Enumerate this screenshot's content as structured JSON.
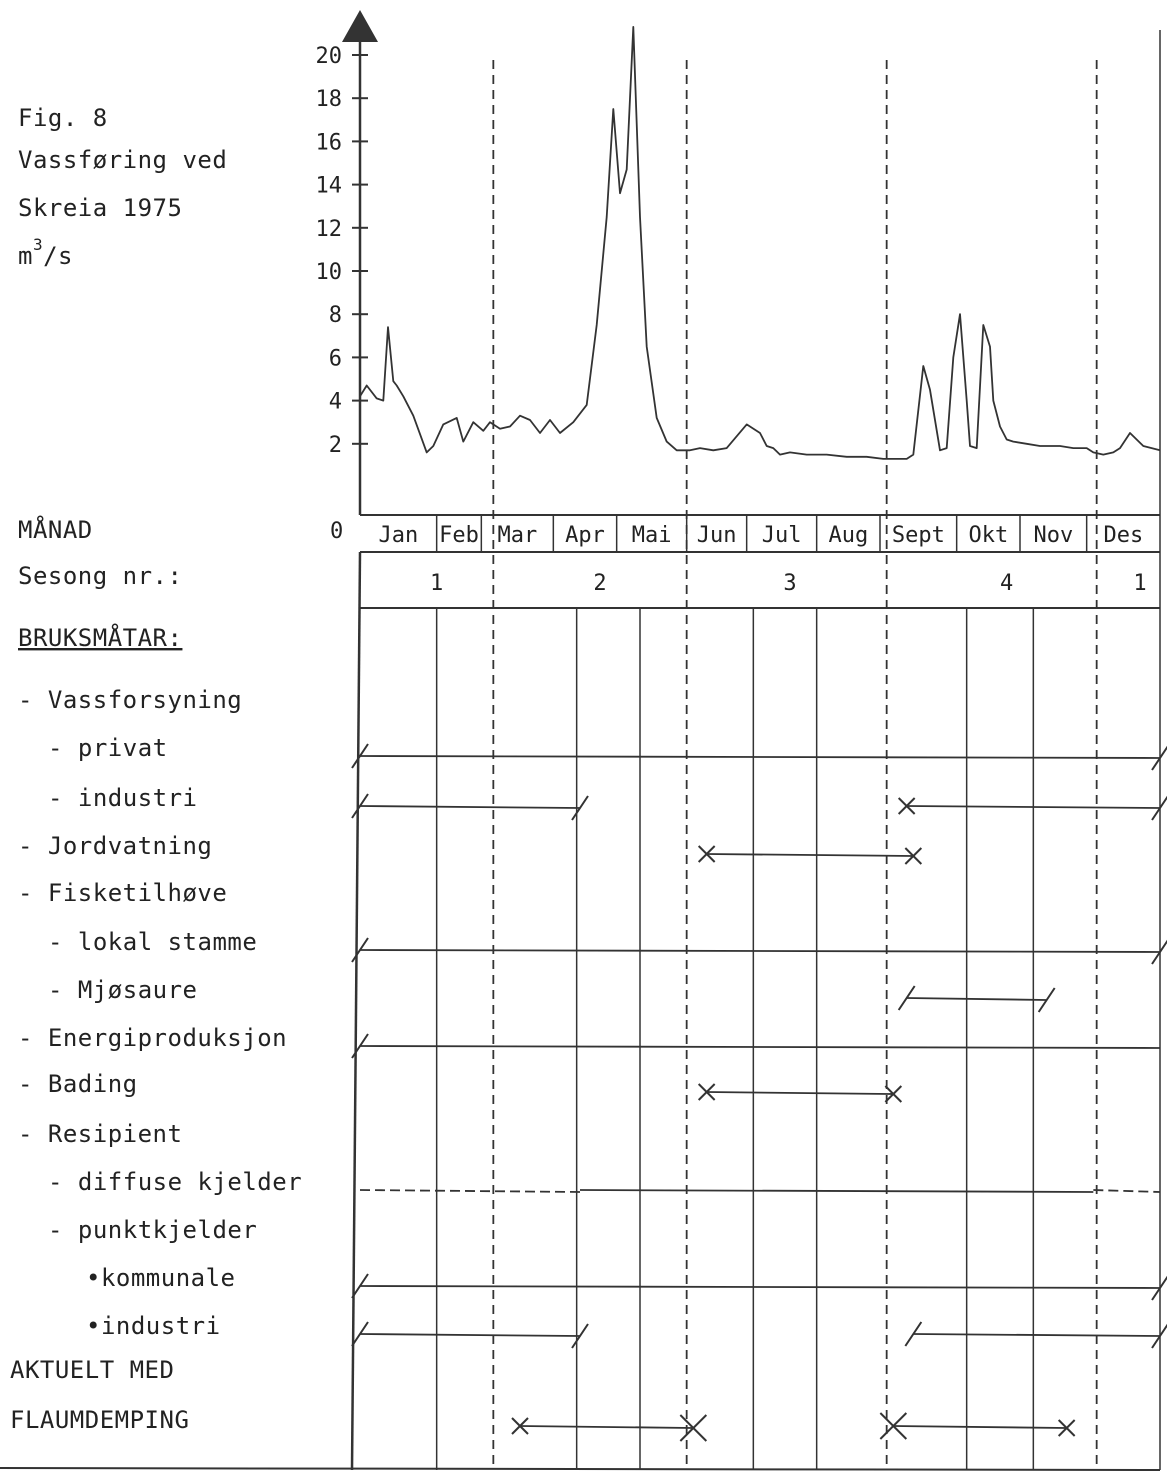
{
  "figure": {
    "fig_label": "Fig. 8",
    "title_line1": "Vassføring ved",
    "title_line2": "Skreia 1975",
    "unit_base": "m",
    "unit_exp": "3",
    "unit_tail": "/s"
  },
  "rows": {
    "month_label": "MÅNAD",
    "season_label": "Sesong nr.:",
    "uses_heading": "BRUKSMÅTAR:"
  },
  "months": [
    "Jan",
    "Feb",
    "Mar",
    "Apr",
    "Mai",
    "Jun",
    "Jul",
    "Aug",
    "Sept",
    "Okt",
    "Nov",
    "Des"
  ],
  "seasons": [
    "1",
    "2",
    "3",
    "4",
    "1"
  ],
  "uses": [
    {
      "label": "- Vassforsyning",
      "indent": 0,
      "bar": null
    },
    {
      "label": "- privat",
      "indent": 1,
      "bar": {
        "start": 0,
        "end": 12,
        "style": "solid",
        "start_mark": "slash",
        "end_mark": "slash"
      }
    },
    {
      "label": "- industri",
      "indent": 1,
      "bar": [
        {
          "start": 0,
          "end": 3.3,
          "style": "solid",
          "start_mark": "slash",
          "end_mark": "slash"
        },
        {
          "start": 8.2,
          "end": 12,
          "style": "solid",
          "start_mark": "x",
          "end_mark": "slash"
        }
      ]
    },
    {
      "label": "- Jordvatning",
      "indent": 0,
      "bar": {
        "start": 5.2,
        "end": 8.3,
        "style": "solid",
        "start_mark": "x",
        "end_mark": "x"
      }
    },
    {
      "label": "- Fisketilhøve",
      "indent": 0,
      "bar": null
    },
    {
      "label": "- lokal stamme",
      "indent": 1,
      "bar": {
        "start": 0,
        "end": 12,
        "style": "solid",
        "start_mark": "slash",
        "end_mark": "slash"
      }
    },
    {
      "label": "- Mjøsaure",
      "indent": 1,
      "bar": {
        "start": 8.2,
        "end": 10.3,
        "style": "solid",
        "start_mark": "slash",
        "end_mark": "slash"
      }
    },
    {
      "label": "- Energiproduksjon",
      "indent": 0,
      "bar": {
        "start": 0,
        "end": 12,
        "style": "solid",
        "start_mark": "slash",
        "end_mark": "none"
      }
    },
    {
      "label": "- Bading",
      "indent": 0,
      "bar": {
        "start": 5.2,
        "end": 8.0,
        "style": "solid",
        "start_mark": "x",
        "end_mark": "x"
      }
    },
    {
      "label": "- Resipient",
      "indent": 0,
      "bar": null
    },
    {
      "label": "- diffuse kjelder",
      "indent": 1,
      "bar": [
        {
          "start": 0,
          "end": 3.3,
          "style": "dashed",
          "start_mark": "none",
          "end_mark": "none"
        },
        {
          "start": 3.3,
          "end": 11.0,
          "style": "solid",
          "start_mark": "none",
          "end_mark": "none"
        },
        {
          "start": 11.0,
          "end": 12,
          "style": "dashed",
          "start_mark": "none",
          "end_mark": "none"
        }
      ]
    },
    {
      "label": "- punktkjelder",
      "indent": 1,
      "bar": null
    },
    {
      "label": "•kommunale",
      "indent": 2,
      "bar": {
        "start": 0,
        "end": 12,
        "style": "solid",
        "start_mark": "slash",
        "end_mark": "slash"
      }
    },
    {
      "label": "•industri",
      "indent": 2,
      "bar": [
        {
          "start": 0,
          "end": 3.3,
          "style": "solid",
          "start_mark": "slash",
          "end_mark": "slash"
        },
        {
          "start": 8.3,
          "end": 12,
          "style": "solid",
          "start_mark": "slash",
          "end_mark": "slash"
        }
      ]
    }
  ],
  "flood": {
    "line1": "AKTUELT MED",
    "line2": "FLAUMDEMPING",
    "bar": [
      {
        "start": 2.4,
        "end": 5.0,
        "style": "solid",
        "start_mark": "x",
        "end_mark": "bigx"
      },
      {
        "start": 8.0,
        "end": 10.6,
        "style": "solid",
        "start_mark": "bigx",
        "end_mark": "x"
      }
    ]
  },
  "chart_data": {
    "type": "line",
    "title": "Vassføring ved Skreia 1975",
    "ylabel": "m3/s",
    "ylim": [
      0,
      20
    ],
    "yticks": [
      20,
      18,
      16,
      14,
      12,
      10,
      8,
      6,
      4,
      2,
      0
    ],
    "x_unit": "month of year (0 = start of Jan, 12 = end of Des)",
    "grid": false,
    "series": [
      {
        "values_x": [
          0,
          0.1,
          0.25,
          0.35,
          0.42,
          0.5,
          0.55,
          0.65,
          0.8,
          1.0,
          1.1,
          1.25,
          1.45,
          1.55,
          1.7,
          1.85,
          1.95,
          2.1,
          2.25,
          2.4,
          2.55,
          2.7,
          2.85,
          3.0,
          3.2,
          3.4,
          3.55,
          3.7,
          3.8,
          3.9,
          4.0,
          4.1,
          4.2,
          4.3,
          4.45,
          4.6,
          4.75,
          4.85,
          4.95,
          5.1,
          5.3,
          5.5,
          5.8,
          6.0,
          6.1,
          6.2,
          6.3,
          6.45,
          6.7,
          7.0,
          7.3,
          7.6,
          7.85,
          8.0,
          8.2,
          8.3,
          8.45,
          8.55,
          8.7,
          8.8,
          8.9,
          9.0,
          9.1,
          9.15,
          9.25,
          9.35,
          9.45,
          9.5,
          9.6,
          9.7,
          9.8,
          10.0,
          10.2,
          10.5,
          10.7,
          10.9,
          11.0,
          11.15,
          11.3,
          11.4,
          11.55,
          11.75,
          12.0
        ],
        "values_y": [
          4.2,
          4.7,
          4.1,
          4.0,
          7.4,
          4.9,
          4.7,
          4.2,
          3.3,
          1.6,
          1.9,
          2.9,
          3.2,
          2.1,
          3.0,
          2.6,
          3.0,
          2.7,
          2.8,
          3.3,
          3.1,
          2.5,
          3.1,
          2.5,
          3.0,
          3.8,
          7.5,
          12.5,
          17.5,
          13.6,
          14.7,
          21.3,
          12.5,
          6.5,
          3.2,
          2.1,
          1.7,
          1.7,
          1.7,
          1.8,
          1.7,
          1.8,
          2.9,
          2.5,
          1.9,
          1.8,
          1.5,
          1.6,
          1.5,
          1.5,
          1.4,
          1.4,
          1.3,
          1.3,
          1.3,
          1.5,
          5.6,
          4.5,
          1.7,
          1.8,
          6.0,
          8.0,
          4.0,
          1.9,
          1.8,
          7.5,
          6.5,
          4.0,
          2.8,
          2.2,
          2.1,
          2.0,
          1.9,
          1.9,
          1.8,
          1.8,
          1.6,
          1.5,
          1.6,
          1.8,
          2.5,
          1.9,
          1.7
        ]
      }
    ]
  }
}
